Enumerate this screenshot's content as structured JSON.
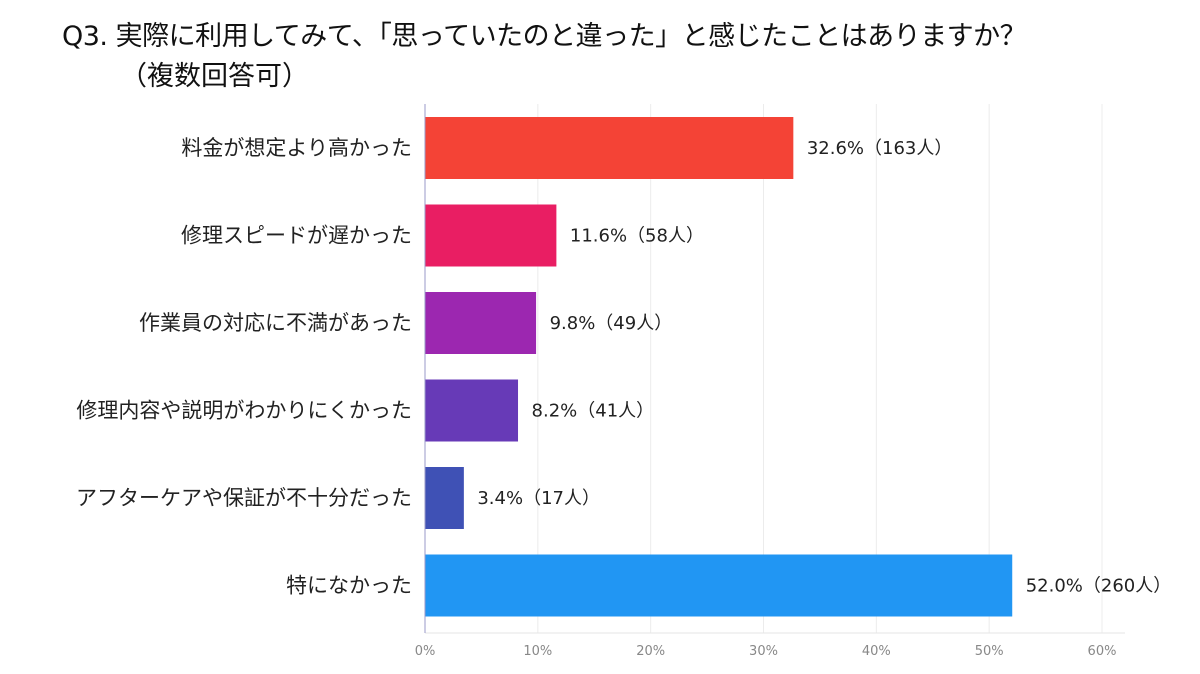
{
  "chart_data": {
    "type": "bar",
    "orientation": "horizontal",
    "title": "Q3. 実際に利用してみて、「思っていたのと違った」と感じたことはありますか？",
    "subtitle": "（複数回答可）",
    "categories": [
      "料金が想定より高かった",
      "修理スピードが遅かった",
      "作業員の対応に不満があった",
      "修理内容や説明がわかりにくかった",
      "アフターケアや保証が不十分だった",
      "特になかった"
    ],
    "values": [
      32.6,
      11.6,
      9.8,
      8.2,
      3.4,
      52.0
    ],
    "data_labels": [
      "32.6%（163人）",
      "11.6%（58人）",
      "9.8%（49人）",
      "8.2%（41人）",
      "3.4%（17人）",
      "52.0%（260人）"
    ],
    "colors": [
      "#F44336",
      "#E91E63",
      "#9C27B0",
      "#673AB7",
      "#3F51B5",
      "#2196F3"
    ],
    "xlim": [
      0,
      60
    ],
    "xticks": [
      "0%",
      "10%",
      "20%",
      "30%",
      "40%",
      "50%",
      "60%"
    ],
    "grid": true,
    "xlabel": "",
    "ylabel": ""
  }
}
